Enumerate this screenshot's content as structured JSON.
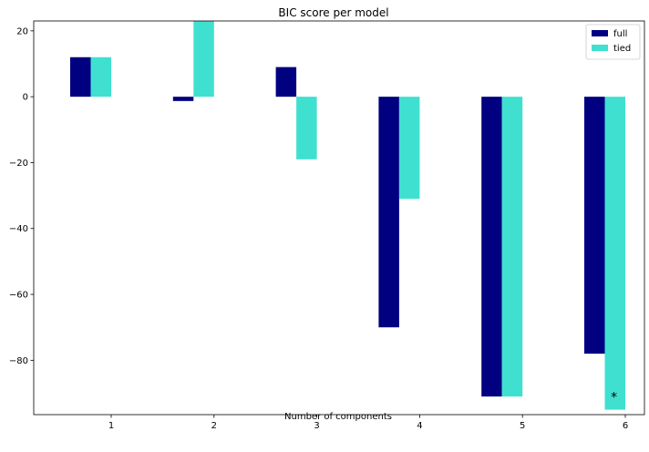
{
  "chart_data": {
    "type": "bar",
    "title": "BIC score per model",
    "xlabel": "Number of components",
    "ylabel": "",
    "categories": [
      "1",
      "2",
      "3",
      "4",
      "5",
      "6"
    ],
    "series": [
      {
        "name": "full",
        "color": "#000080",
        "values": [
          12,
          -1.3,
          9,
          -70,
          -91,
          -78
        ]
      },
      {
        "name": "tied",
        "color": "#40e0d0",
        "values": [
          12,
          23,
          -19,
          -31,
          -91,
          -95
        ]
      }
    ],
    "ylim": [
      -96.5,
      23
    ],
    "yticks": [
      20,
      0,
      -20,
      -40,
      -60,
      -80
    ],
    "ytick_labels": [
      "20",
      "0",
      "−20",
      "−40",
      "−60",
      "−80"
    ],
    "legend_position": "top-right",
    "grid": false,
    "annotations": [
      {
        "text": "*",
        "category": "6",
        "y": -90
      }
    ]
  }
}
